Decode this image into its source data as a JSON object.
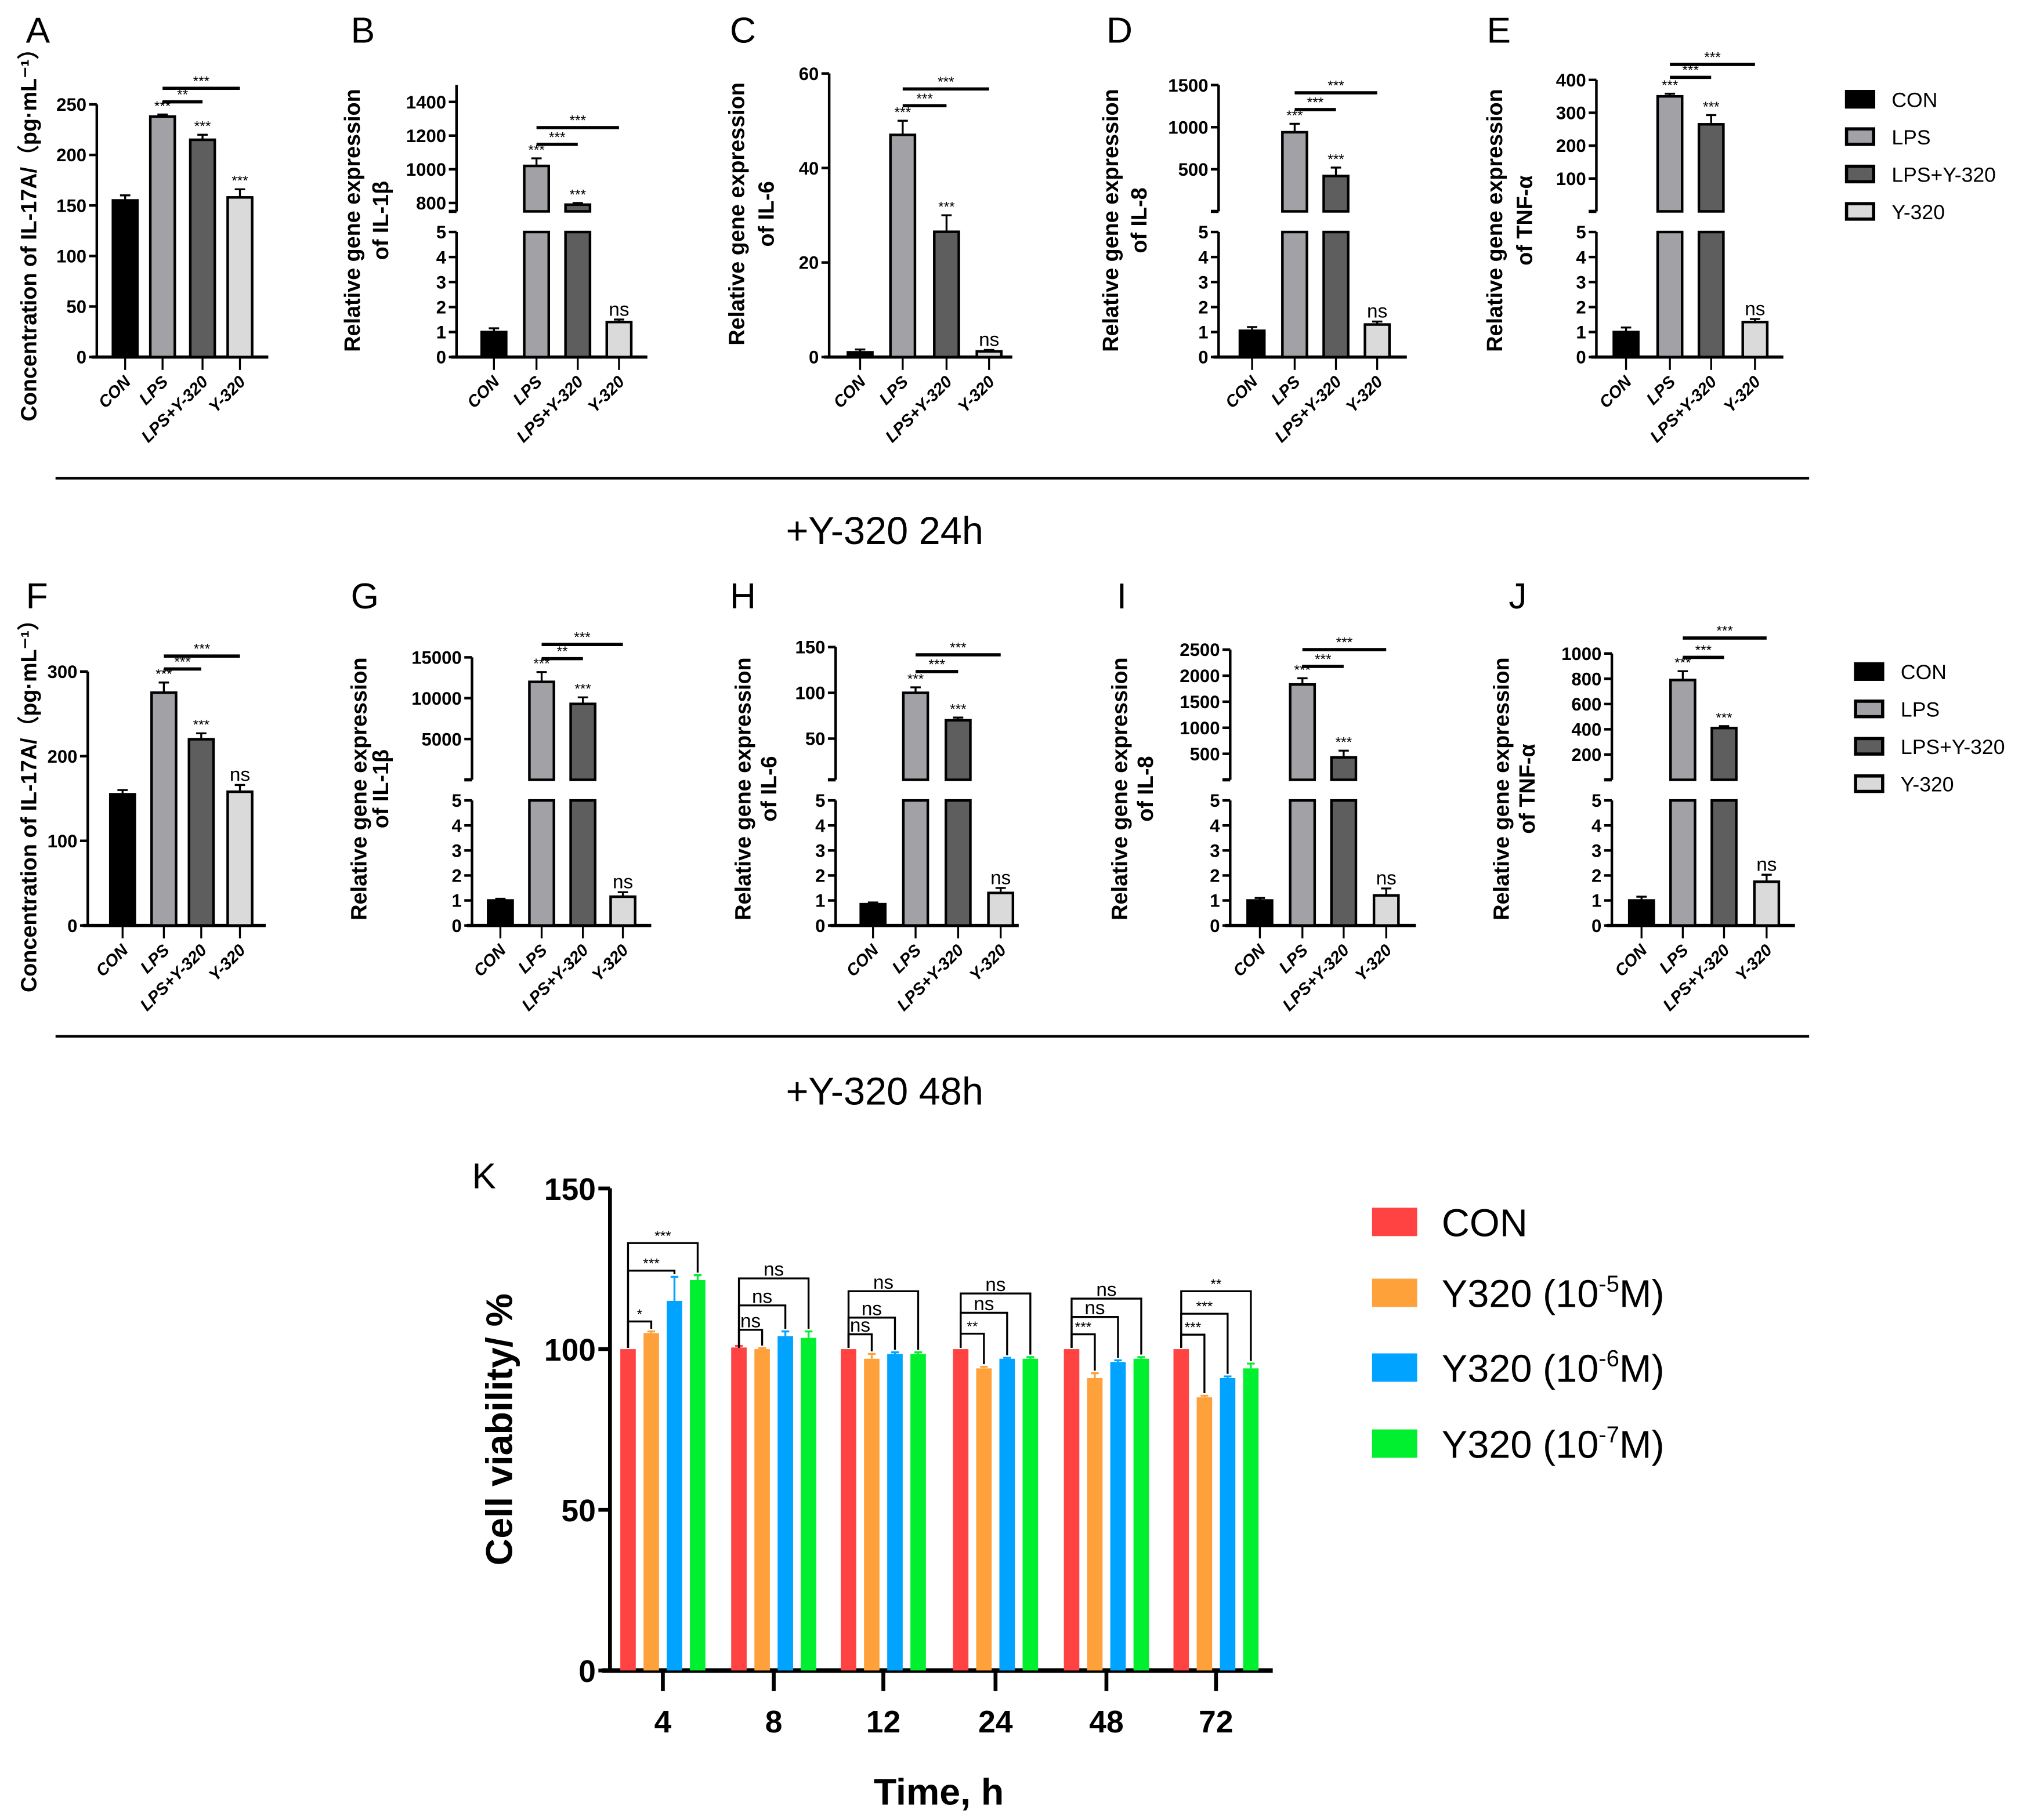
{
  "figure": {
    "panel_letters": [
      "A",
      "B",
      "C",
      "D",
      "E",
      "F",
      "G",
      "H",
      "I",
      "J",
      "K"
    ],
    "row1_caption": "+Y-320 24h",
    "row2_caption": "+Y-320 48h"
  },
  "group_legend": {
    "items": [
      {
        "label": "CON",
        "color": "#000000"
      },
      {
        "label": "LPS",
        "color": "#a2a2a6"
      },
      {
        "label": "LPS+Y-320",
        "color": "#5e5e5e"
      },
      {
        "label": "Y-320",
        "color": "#dadada"
      }
    ]
  },
  "chart_data": [
    {
      "id": "A",
      "type": "bar",
      "ylabel": [
        "Concentration of IL-17A/（pg·mL⁻¹）"
      ],
      "categories": [
        "CON",
        "LPS",
        "LPS+Y-320",
        "Y-320"
      ],
      "values": [
        155,
        238,
        215,
        158
      ],
      "errors": [
        5,
        2,
        5,
        8
      ],
      "bar_labels": [
        "",
        "***",
        "***",
        "***"
      ],
      "brackets": [
        {
          "from": 1,
          "to": 2,
          "label": "**"
        },
        {
          "from": 1,
          "to": 3,
          "label": "***"
        }
      ],
      "ylim": [
        0,
        250
      ],
      "yticks": [
        0,
        50,
        100,
        150,
        200,
        250
      ]
    },
    {
      "id": "B",
      "type": "bar",
      "ylabel": [
        "Relative gene expression",
        "of IL-1β"
      ],
      "categories": [
        "CON",
        "LPS",
        "LPS+Y-320",
        "Y-320"
      ],
      "values": [
        1.0,
        1020,
        790,
        1.4
      ],
      "errors": [
        0.15,
        45,
        10,
        0.1
      ],
      "bar_labels": [
        "",
        "***",
        "***",
        "ns"
      ],
      "brackets": [
        {
          "from": 1,
          "to": 2,
          "label": "***"
        },
        {
          "from": 1,
          "to": 3,
          "label": "***"
        }
      ],
      "broken_axis": {
        "lower": [
          0,
          5
        ],
        "lower_ticks": [
          0,
          1,
          2,
          3,
          4,
          5
        ],
        "upper": [
          750,
          1500
        ],
        "upper_ticks": [
          800,
          1000,
          1200,
          1400
        ]
      }
    },
    {
      "id": "C",
      "type": "bar",
      "ylabel": [
        "Relative gene expression",
        "of IL-6"
      ],
      "categories": [
        "CON",
        "LPS",
        "LPS+Y-320",
        "Y-320"
      ],
      "values": [
        1.0,
        47,
        26.5,
        1.2
      ],
      "errors": [
        0.6,
        3,
        3.5,
        0.3
      ],
      "bar_labels": [
        "",
        "***",
        "***",
        "ns"
      ],
      "brackets": [
        {
          "from": 1,
          "to": 2,
          "label": "***"
        },
        {
          "from": 1,
          "to": 3,
          "label": "***"
        }
      ],
      "ylim": [
        0,
        60
      ],
      "yticks": [
        0,
        20,
        40,
        60
      ]
    },
    {
      "id": "D",
      "type": "bar",
      "ylabel": [
        "Relative gene expression",
        "of IL-8"
      ],
      "categories": [
        "CON",
        "LPS",
        "LPS+Y-320",
        "Y-320"
      ],
      "values": [
        1.05,
        940,
        420,
        1.3
      ],
      "errors": [
        0.15,
        100,
        100,
        0.12
      ],
      "bar_labels": [
        "",
        "***",
        "***",
        "ns"
      ],
      "brackets": [
        {
          "from": 1,
          "to": 2,
          "label": "***"
        },
        {
          "from": 1,
          "to": 3,
          "label": "***"
        }
      ],
      "broken_axis": {
        "lower": [
          0,
          5
        ],
        "lower_ticks": [
          0,
          1,
          2,
          3,
          4,
          5
        ],
        "upper": [
          0,
          1500
        ],
        "upper_ticks": [
          500,
          1000,
          1500
        ]
      }
    },
    {
      "id": "E",
      "type": "bar",
      "ylabel": [
        "Relative gene expression",
        "of TNF-α"
      ],
      "categories": [
        "CON",
        "LPS",
        "LPS+Y-320",
        "Y-320"
      ],
      "values": [
        1.0,
        350,
        265,
        1.4
      ],
      "errors": [
        0.18,
        8,
        28,
        0.12
      ],
      "bar_labels": [
        "",
        "***",
        "***",
        "ns"
      ],
      "brackets": [
        {
          "from": 1,
          "to": 2,
          "label": "***"
        },
        {
          "from": 1,
          "to": 3,
          "label": "***"
        }
      ],
      "broken_axis": {
        "lower": [
          0,
          5
        ],
        "lower_ticks": [
          0,
          1,
          2,
          3,
          4,
          5
        ],
        "upper": [
          0,
          400
        ],
        "upper_ticks": [
          100,
          200,
          300,
          400
        ]
      }
    },
    {
      "id": "F",
      "type": "bar",
      "ylabel": [
        "Concentration of IL-17A/（pg·mL⁻¹）"
      ],
      "categories": [
        "CON",
        "LPS",
        "LPS+Y-320",
        "Y-320"
      ],
      "values": [
        155,
        275,
        220,
        158
      ],
      "errors": [
        5,
        12,
        7,
        8
      ],
      "bar_labels": [
        "",
        "***",
        "***",
        "ns"
      ],
      "brackets": [
        {
          "from": 1,
          "to": 2,
          "label": "***"
        },
        {
          "from": 1,
          "to": 3,
          "label": "***"
        }
      ],
      "ylim": [
        0,
        300
      ],
      "yticks": [
        0,
        100,
        200,
        300
      ]
    },
    {
      "id": "G",
      "type": "bar",
      "ylabel": [
        "Relative gene expression",
        "of IL-1β"
      ],
      "categories": [
        "CON",
        "LPS",
        "LPS+Y-320",
        "Y-320"
      ],
      "values": [
        1.0,
        12000,
        9300,
        1.15
      ],
      "errors": [
        0.07,
        1200,
        800,
        0.18
      ],
      "bar_labels": [
        "",
        "***",
        "***",
        "ns"
      ],
      "brackets": [
        {
          "from": 1,
          "to": 2,
          "label": "**"
        },
        {
          "from": 1,
          "to": 3,
          "label": "***"
        }
      ],
      "broken_axis": {
        "lower": [
          0,
          5
        ],
        "lower_ticks": [
          0,
          1,
          2,
          3,
          4,
          5
        ],
        "upper": [
          0,
          15000
        ],
        "upper_ticks": [
          5000,
          10000,
          15000
        ]
      }
    },
    {
      "id": "H",
      "type": "bar",
      "ylabel": [
        "Relative gene expression",
        "of IL-6"
      ],
      "categories": [
        "CON",
        "LPS",
        "LPS+Y-320",
        "Y-320"
      ],
      "values": [
        0.85,
        100,
        70,
        1.3
      ],
      "errors": [
        0.07,
        6,
        3,
        0.2
      ],
      "bar_labels": [
        "",
        "***",
        "***",
        "ns"
      ],
      "brackets": [
        {
          "from": 1,
          "to": 2,
          "label": "***"
        },
        {
          "from": 1,
          "to": 3,
          "label": "***"
        }
      ],
      "broken_axis": {
        "lower": [
          0,
          5
        ],
        "lower_ticks": [
          0,
          1,
          2,
          3,
          4,
          5
        ],
        "upper": [
          5,
          150
        ],
        "upper_ticks": [
          50,
          100,
          150
        ]
      }
    },
    {
      "id": "I",
      "type": "bar",
      "ylabel": [
        "Relative gene expression",
        "of IL-8"
      ],
      "categories": [
        "CON",
        "LPS",
        "LPS+Y-320",
        "Y-320"
      ],
      "values": [
        1.0,
        1830,
        430,
        1.2
      ],
      "errors": [
        0.1,
        120,
        130,
        0.28
      ],
      "bar_labels": [
        "",
        "***",
        "***",
        "ns"
      ],
      "brackets": [
        {
          "from": 1,
          "to": 2,
          "label": "***"
        },
        {
          "from": 1,
          "to": 3,
          "label": "***"
        }
      ],
      "broken_axis": {
        "lower": [
          0,
          5
        ],
        "lower_ticks": [
          0,
          1,
          2,
          3,
          4,
          5
        ],
        "upper": [
          0,
          2500
        ],
        "upper_ticks": [
          500,
          1000,
          1500,
          2000,
          2500
        ]
      }
    },
    {
      "id": "J",
      "type": "bar",
      "ylabel": [
        "Relative gene expression",
        "of TNF-α"
      ],
      "categories": [
        "CON",
        "LPS",
        "LPS+Y-320",
        "Y-320"
      ],
      "values": [
        1.0,
        790,
        410,
        1.75
      ],
      "errors": [
        0.15,
        70,
        15,
        0.28
      ],
      "bar_labels": [
        "",
        "***",
        "***",
        "ns"
      ],
      "brackets": [
        {
          "from": 1,
          "to": 2,
          "label": "***"
        },
        {
          "from": 1,
          "to": 3,
          "label": "***"
        }
      ],
      "broken_axis": {
        "lower": [
          0,
          5
        ],
        "lower_ticks": [
          0,
          1,
          2,
          3,
          4,
          5
        ],
        "upper": [
          0,
          1000
        ],
        "upper_ticks": [
          200,
          400,
          600,
          800,
          1000
        ]
      }
    },
    {
      "id": "K",
      "type": "bar",
      "xlabel": "Time, h",
      "ylabel": "Cell viability/ %",
      "categories": [
        "4",
        "8",
        "12",
        "24",
        "48",
        "72"
      ],
      "ylim": [
        0,
        150
      ],
      "yticks": [
        0,
        50,
        100,
        150
      ],
      "series": [
        {
          "name": "CON",
          "label": {
            "text": "CON",
            "sup": "",
            "tail": ""
          },
          "color": "#ff4242",
          "values": [
            100,
            100.5,
            100,
            100,
            100,
            100
          ],
          "errors": [
            0,
            0.5,
            0,
            0,
            0,
            0
          ]
        },
        {
          "name": "Y320 (10-5M)",
          "label": {
            "text": "Y320 (10",
            "sup": "-5",
            "tail": "M)"
          },
          "color": "#ffa13b",
          "values": [
            105,
            100,
            97,
            94,
            91,
            85
          ],
          "errors": [
            0.5,
            0.3,
            1.5,
            0.5,
            1.5,
            0.5
          ]
        },
        {
          "name": "Y320 (10-6M)",
          "label": {
            "text": "Y320 (10",
            "sup": "-6",
            "tail": "M)"
          },
          "color": "#00a3ff",
          "values": [
            115,
            104,
            98.5,
            97,
            96,
            91
          ],
          "errors": [
            7.5,
            1.5,
            0.5,
            0.3,
            0.5,
            0.5
          ]
        },
        {
          "name": "Y320 (10-7M)",
          "label": {
            "text": "Y320 (10",
            "sup": "-7",
            "tail": "M)"
          },
          "color": "#00f030",
          "values": [
            121.5,
            103.5,
            98.5,
            97,
            97,
            94
          ],
          "errors": [
            1.5,
            2,
            0.5,
            0.5,
            0.5,
            1.5
          ]
        }
      ],
      "comparisons": [
        {
          "labels": [
            "*",
            "***",
            "***"
          ],
          "heights": [
            108.6,
            124.4,
            133
          ]
        },
        {
          "labels": [
            "ns",
            "ns",
            "ns"
          ],
          "heights": [
            106,
            113.6,
            122
          ]
        },
        {
          "labels": [
            "ns",
            "ns",
            "ns"
          ],
          "heights": [
            104.6,
            109.8,
            118
          ]
        },
        {
          "labels": [
            "**",
            "ns",
            "ns"
          ],
          "heights": [
            104.8,
            111.3,
            117.3
          ]
        },
        {
          "labels": [
            "***",
            "ns",
            "ns"
          ],
          "heights": [
            104.6,
            110,
            115.7
          ]
        },
        {
          "labels": [
            "***",
            "***",
            "**"
          ],
          "heights": [
            104.5,
            111,
            118
          ]
        }
      ]
    }
  ]
}
